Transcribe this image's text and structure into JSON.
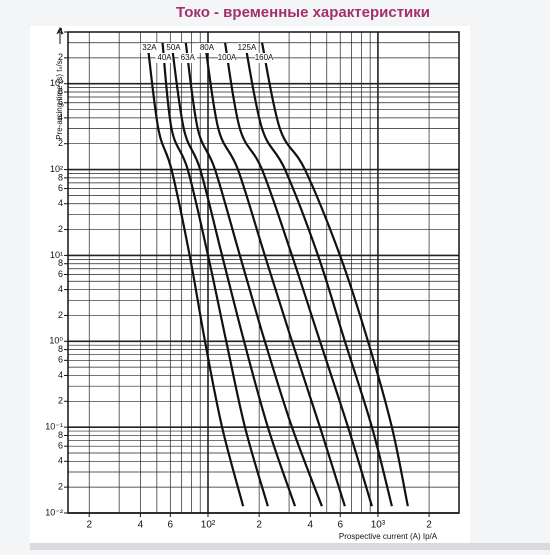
{
  "chart_data": {
    "type": "line",
    "title": "Токо - временные характеристики",
    "x_label": "Prospective current (A) Ip/A",
    "y_label": "Pre-arcing time (s)  tₛ/s",
    "log_x": true,
    "log_y": true,
    "grid": true,
    "color": "#111111",
    "xlim": [
      15,
      3000
    ],
    "ylim": [
      0.01,
      4000
    ],
    "xticks": [
      {
        "value": 20,
        "label": "2"
      },
      {
        "value": 40,
        "label": "4"
      },
      {
        "value": 60,
        "label": "6"
      },
      {
        "value": 100,
        "label": "10²"
      },
      {
        "value": 200,
        "label": "2"
      },
      {
        "value": 400,
        "label": "4"
      },
      {
        "value": 600,
        "label": "6"
      },
      {
        "value": 1000,
        "label": "10³"
      },
      {
        "value": 2000,
        "label": "2"
      }
    ],
    "yticks": [
      {
        "value": 0.01,
        "label": "10⁻²"
      },
      {
        "value": 0.02,
        "label": "2"
      },
      {
        "value": 0.04,
        "label": "4"
      },
      {
        "value": 0.06,
        "label": "6"
      },
      {
        "value": 0.08,
        "label": "8"
      },
      {
        "value": 0.1,
        "label": "10⁻¹"
      },
      {
        "value": 0.2,
        "label": "2"
      },
      {
        "value": 0.4,
        "label": "4"
      },
      {
        "value": 0.6,
        "label": "6"
      },
      {
        "value": 0.8,
        "label": "8"
      },
      {
        "value": 1,
        "label": "10⁰"
      },
      2,
      4,
      6,
      8,
      {
        "value": 10,
        "label": "10¹"
      },
      {
        "value": 20,
        "label": "2"
      },
      {
        "value": 40,
        "label": "4"
      },
      {
        "value": 60,
        "label": "6"
      },
      {
        "value": 80,
        "label": "8"
      },
      {
        "value": 100,
        "label": "10²"
      },
      {
        "value": 200,
        "label": "2"
      },
      {
        "value": 400,
        "label": "4"
      },
      {
        "value": 600,
        "label": "6"
      },
      {
        "value": 800,
        "label": "8"
      },
      {
        "value": 1000,
        "label": "10³"
      },
      {
        "value": 2000,
        "label": "2"
      },
      {
        "value": 4000,
        "label": "4"
      }
    ],
    "series": [
      {
        "name": "32A",
        "x": [
          44,
          51,
          61,
          78,
          96,
          121,
          161
        ],
        "values": [
          3000,
          300,
          100,
          10,
          1,
          0.1,
          0.012
        ]
      },
      {
        "name": "40A",
        "x": [
          54,
          61,
          76,
          100,
          128,
          165,
          225
        ],
        "values": [
          3000,
          300,
          100,
          10,
          1,
          0.1,
          0.012
        ]
      },
      {
        "name": "50A",
        "x": [
          61,
          72,
          90,
          121,
          163,
          225,
          325
        ],
        "values": [
          3000,
          300,
          100,
          10,
          1,
          0.1,
          0.012
        ]
      },
      {
        "name": "63A",
        "x": [
          74,
          87,
          110,
          154,
          216,
          312,
          468
        ],
        "values": [
          3000,
          300,
          100,
          10,
          1,
          0.1,
          0.012
        ]
      },
      {
        "name": "80A",
        "x": [
          96,
          115,
          150,
          216,
          312,
          456,
          639
        ],
        "values": [
          3000,
          300,
          100,
          10,
          1,
          0.1,
          0.012
        ]
      },
      {
        "name": "100A",
        "x": [
          126,
          154,
          208,
          312,
          456,
          667,
          922
        ],
        "values": [
          3000,
          300,
          100,
          10,
          1,
          0.1,
          0.012
        ]
      },
      {
        "name": "125A",
        "x": [
          165,
          208,
          284,
          444,
          639,
          922,
          1208
        ],
        "values": [
          3000,
          300,
          100,
          10,
          1,
          0.1,
          0.012
        ]
      },
      {
        "name": "160A",
        "x": [
          208,
          265,
          372,
          598,
          874,
          1208,
          1500
        ],
        "values": [
          3000,
          300,
          100,
          10,
          1,
          0.1,
          0.012
        ]
      }
    ]
  }
}
